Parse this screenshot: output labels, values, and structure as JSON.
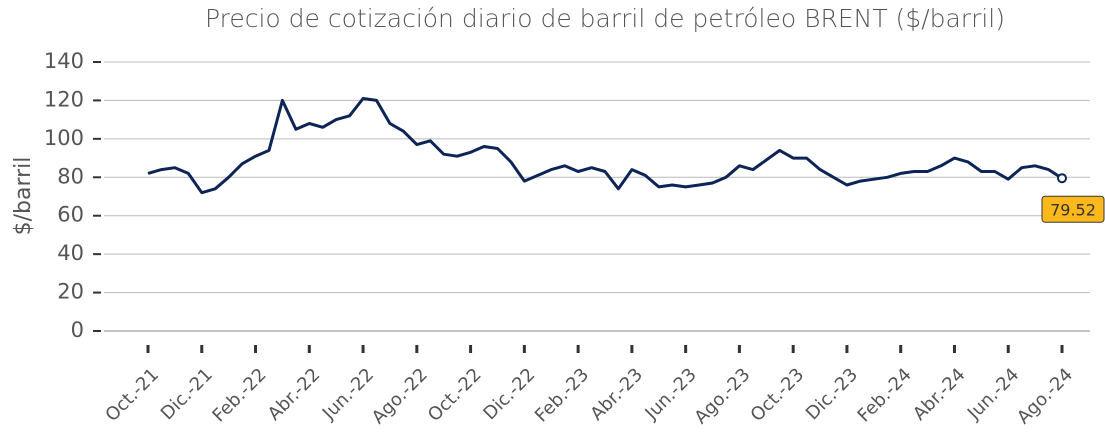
{
  "chart_data": {
    "type": "line",
    "title": "Precio de cotización diario de barril de petróleo BRENT ($/barril)",
    "y_label": "$/barril",
    "categories": [
      "Oct.-21",
      null,
      null,
      null,
      "Dic.-21",
      null,
      null,
      null,
      "Feb.-22",
      null,
      null,
      null,
      "Abr.-22",
      null,
      null,
      null,
      "Jun.-22",
      null,
      null,
      null,
      "Ago.-22",
      null,
      null,
      null,
      "Oct.-22",
      null,
      null,
      null,
      "Dic.-22",
      null,
      null,
      null,
      "Feb.-23",
      null,
      null,
      null,
      "Abr.-23",
      null,
      null,
      null,
      "Jun.-23",
      null,
      null,
      null,
      "Ago.-23",
      null,
      null,
      null,
      "Oct.-23",
      null,
      null,
      null,
      "Dic.-23",
      null,
      null,
      null,
      "Feb.-24",
      null,
      null,
      null,
      "Abr.-24",
      null,
      null,
      null,
      "Jun.-24",
      null,
      null,
      null,
      "Ago.-24"
    ],
    "series": [
      {
        "name": "BRENT",
        "color": "#0d2556",
        "values": [
          82,
          84,
          85,
          82,
          72,
          74,
          80,
          87,
          91,
          94,
          120,
          105,
          108,
          106,
          110,
          112,
          121,
          120,
          108,
          104,
          97,
          99,
          92,
          91,
          93,
          96,
          95,
          88,
          78,
          81,
          84,
          86,
          83,
          85,
          83,
          74,
          84,
          81,
          75,
          76,
          75,
          76,
          77,
          80,
          86,
          84,
          89,
          94,
          90,
          90,
          84,
          80,
          76,
          78,
          79,
          80,
          82,
          83,
          83,
          86,
          90,
          88,
          83,
          83,
          79,
          85,
          86,
          84,
          79.52
        ],
        "end_label": "79.52",
        "end_label_color": "#ffb81c"
      }
    ],
    "ylim": [
      0,
      140
    ],
    "yticks": [
      0,
      20,
      40,
      60,
      80,
      100,
      120,
      140
    ],
    "grid": true
  }
}
